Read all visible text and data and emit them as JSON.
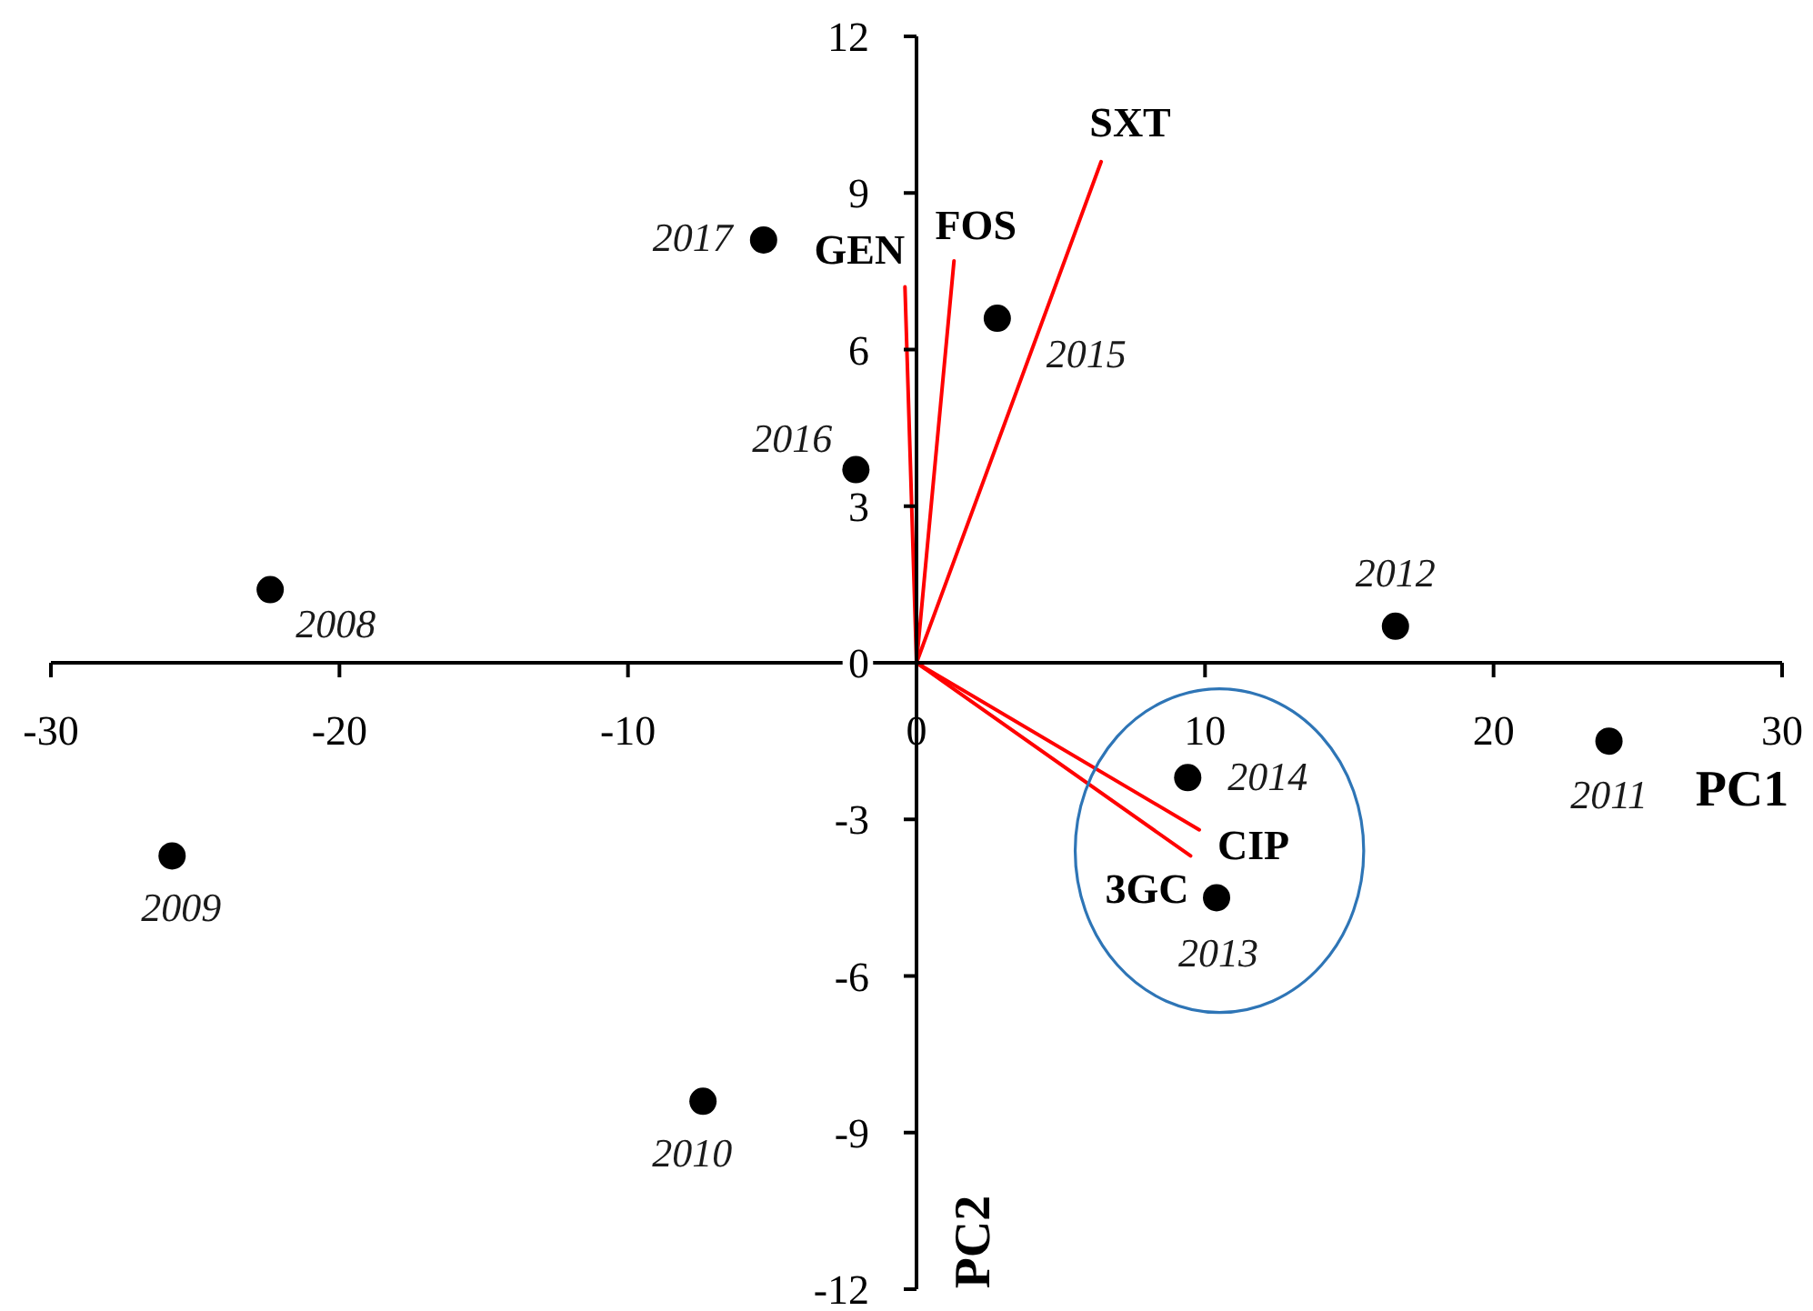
{
  "chart_data": {
    "type": "scatter",
    "xlabel": "PC1",
    "ylabel": "PC2",
    "xlim": [
      -30,
      30
    ],
    "xticks": [
      -30,
      -20,
      -10,
      0,
      10,
      20,
      30
    ],
    "ylim": [
      -12,
      12
    ],
    "yticks": [
      -12,
      -9,
      -6,
      -3,
      0,
      3,
      6,
      9,
      12
    ],
    "series": [
      {
        "color": "#000000",
        "marker": "circle",
        "x": [
          -22.4,
          -25.8,
          -7.4,
          24.0,
          16.6,
          10.4,
          9.4,
          2.8,
          -2.1,
          -5.3
        ],
        "values": [
          1.4,
          -3.7,
          -8.4,
          -1.5,
          0.7,
          -4.5,
          -2.2,
          6.6,
          3.7,
          8.1
        ]
      },
      {
        "type": "line",
        "name": "GEN",
        "color": "#ff0000",
        "marker": "none",
        "line_style": "solid",
        "x": [
          0,
          -0.4
        ],
        "values": [
          0,
          7.2
        ]
      },
      {
        "type": "line",
        "name": "FOS",
        "color": "#ff0000",
        "marker": "none",
        "line_style": "solid",
        "x": [
          0,
          1.3
        ],
        "values": [
          0,
          7.7
        ]
      },
      {
        "type": "line",
        "name": "SXT",
        "color": "#ff0000",
        "marker": "none",
        "line_style": "solid",
        "x": [
          0,
          6.4
        ],
        "values": [
          0,
          9.6
        ]
      },
      {
        "type": "line",
        "name": "CIP",
        "color": "#ff0000",
        "marker": "none",
        "line_style": "solid",
        "x": [
          0,
          9.8
        ],
        "values": [
          0,
          -3.2
        ]
      },
      {
        "type": "line",
        "name": "3GC",
        "color": "#ff0000",
        "marker": "none",
        "line_style": "solid",
        "x": [
          0,
          9.5
        ],
        "values": [
          0,
          -3.7
        ]
      }
    ],
    "annotations": [
      {
        "text": "2008",
        "x": -22.4,
        "y": 1.4
      },
      {
        "text": "2009",
        "x": -25.8,
        "y": -3.7
      },
      {
        "text": "2010",
        "x": -7.4,
        "y": -8.4
      },
      {
        "text": "2011",
        "x": 24.0,
        "y": -1.5
      },
      {
        "text": "2012",
        "x": 16.6,
        "y": 0.7
      },
      {
        "text": "2013",
        "x": 10.4,
        "y": -4.5
      },
      {
        "text": "2014",
        "x": 9.4,
        "y": -2.2
      },
      {
        "text": "2015",
        "x": 2.8,
        "y": 6.6
      },
      {
        "text": "2016",
        "x": -2.1,
        "y": 3.7
      },
      {
        "text": "2017",
        "x": -5.3,
        "y": 8.1
      }
    ]
  }
}
